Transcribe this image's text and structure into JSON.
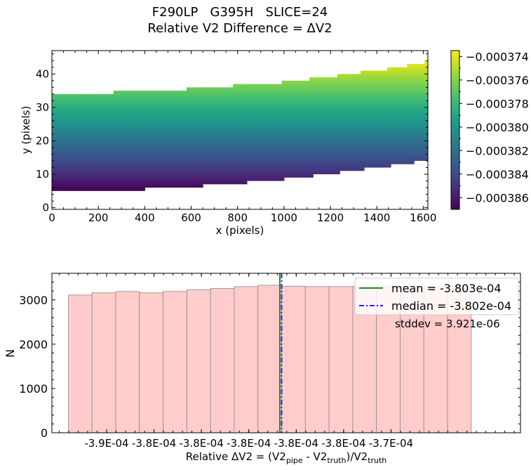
{
  "title_line1": "F290LP   G395H   SLICE=24",
  "title_line2": "Relative V2 Difference = ΔV2",
  "chart_data": [
    {
      "type": "heatmap",
      "xlabel": "x (pixels)",
      "ylabel": "y (pixels)",
      "xlim": [
        0,
        1620
      ],
      "ylim": [
        -0.5,
        47
      ],
      "xticks": [
        0,
        200,
        400,
        600,
        800,
        1000,
        1200,
        1400,
        1600
      ],
      "yticks": [
        0,
        10,
        20,
        30,
        40
      ],
      "colormap": "viridis",
      "colorbar": {
        "vmin": -0.000387,
        "vmax": -0.0003735,
        "ticks": [
          -0.000374,
          -0.000376,
          -0.000378,
          -0.00038,
          -0.000382,
          -0.000384,
          -0.000386
        ],
        "tick_labels": [
          "−0.000374",
          "−0.000376",
          "−0.000378",
          "−0.000380",
          "−0.000382",
          "−0.000384",
          "−0.000386"
        ]
      },
      "region_segments": [
        {
          "x0": 0,
          "x1": 130,
          "ybot": 5,
          "ytop": 34
        },
        {
          "x0": 130,
          "x1": 265,
          "ybot": 5,
          "ytop": 34
        },
        {
          "x0": 265,
          "x1": 400,
          "ybot": 5,
          "ytop": 35
        },
        {
          "x0": 400,
          "x1": 580,
          "ybot": 6,
          "ytop": 35
        },
        {
          "x0": 580,
          "x1": 650,
          "ybot": 6,
          "ytop": 36
        },
        {
          "x0": 650,
          "x1": 780,
          "ybot": 7,
          "ytop": 36
        },
        {
          "x0": 780,
          "x1": 840,
          "ybot": 7,
          "ytop": 37
        },
        {
          "x0": 840,
          "x1": 990,
          "ybot": 8,
          "ytop": 37
        },
        {
          "x0": 990,
          "x1": 1000,
          "ybot": 8,
          "ytop": 38
        },
        {
          "x0": 1000,
          "x1": 1110,
          "ybot": 9,
          "ytop": 38
        },
        {
          "x0": 1110,
          "x1": 1125,
          "ybot": 9,
          "ytop": 39
        },
        {
          "x0": 1125,
          "x1": 1230,
          "ybot": 10,
          "ytop": 39
        },
        {
          "x0": 1230,
          "x1": 1240,
          "ybot": 10,
          "ytop": 40
        },
        {
          "x0": 1240,
          "x1": 1330,
          "ybot": 11,
          "ytop": 40
        },
        {
          "x0": 1330,
          "x1": 1345,
          "ybot": 11,
          "ytop": 41
        },
        {
          "x0": 1345,
          "x1": 1445,
          "ybot": 12,
          "ytop": 41
        },
        {
          "x0": 1445,
          "x1": 1460,
          "ybot": 12,
          "ytop": 42
        },
        {
          "x0": 1460,
          "x1": 1530,
          "ybot": 13,
          "ytop": 42
        },
        {
          "x0": 1530,
          "x1": 1560,
          "ybot": 13,
          "ytop": 43
        },
        {
          "x0": 1560,
          "x1": 1605,
          "ybot": 14,
          "ytop": 43
        },
        {
          "x0": 1605,
          "x1": 1620,
          "ybot": 14,
          "ytop": 44
        }
      ]
    },
    {
      "type": "bar",
      "xlabel_parts": [
        {
          "t": "Relative ΔV2 = (V2",
          "s": 0
        },
        {
          "t": "pipe",
          "s": 1
        },
        {
          "t": " - V2",
          "s": 0
        },
        {
          "t": "truth",
          "s": 1
        },
        {
          "t": ")/V2",
          "s": 0
        },
        {
          "t": "truth",
          "s": 1
        }
      ],
      "ylabel": "N",
      "xlim": [
        -0.0003928,
        -0.0003671
      ],
      "ylim": [
        0,
        3600
      ],
      "yticks": [
        0,
        1000,
        2000,
        3000
      ],
      "xticks": [
        -0.0003898,
        -0.0003872,
        -0.0003846,
        -0.000382,
        -0.0003794,
        -0.0003768,
        -0.0003742
      ],
      "xtick_labels": [
        "-3.9E-04",
        "-3.8E-04",
        "-3.8E-04",
        "-3.8E-04",
        "-3.8E-04",
        "-3.8E-04",
        "-3.7E-04"
      ],
      "bins": [
        {
          "x0": -0.0003919,
          "x1": -0.0003906,
          "n": 3110
        },
        {
          "x0": -0.0003906,
          "x1": -0.0003893,
          "n": 3160
        },
        {
          "x0": -0.0003893,
          "x1": -0.000388,
          "n": 3190
        },
        {
          "x0": -0.000388,
          "x1": -0.0003867,
          "n": 3160
        },
        {
          "x0": -0.0003867,
          "x1": -0.0003854,
          "n": 3190
        },
        {
          "x0": -0.0003854,
          "x1": -0.0003841,
          "n": 3230
        },
        {
          "x0": -0.0003841,
          "x1": -0.0003828,
          "n": 3260
        },
        {
          "x0": -0.0003828,
          "x1": -0.0003815,
          "n": 3300
        },
        {
          "x0": -0.0003815,
          "x1": -0.0003802,
          "n": 3330
        },
        {
          "x0": -0.0003802,
          "x1": -0.0003789,
          "n": 3310
        },
        {
          "x0": -0.0003789,
          "x1": -0.0003776,
          "n": 3300
        },
        {
          "x0": -0.0003776,
          "x1": -0.0003763,
          "n": 3300
        },
        {
          "x0": -0.0003763,
          "x1": -0.000375,
          "n": 3300
        },
        {
          "x0": -0.000375,
          "x1": -0.0003737,
          "n": 3300
        },
        {
          "x0": -0.0003737,
          "x1": -0.0003724,
          "n": 3300
        },
        {
          "x0": -0.0003724,
          "x1": -0.0003711,
          "n": 3300
        },
        {
          "x0": -0.0003711,
          "x1": -0.0003698,
          "n": 3300
        }
      ],
      "bar_color": "#ffcccc",
      "bar_edge": "#8a8a8a",
      "mean": -0.0003803,
      "median": -0.0003802,
      "mean_color": "#228b22",
      "median_color": "#2020ff",
      "legend": {
        "mean_label": "mean = -3.803e-04",
        "median_label": "median = -3.802e-04",
        "position": "top-right"
      },
      "stddev_text": "stddev = 3.921e-06"
    }
  ]
}
